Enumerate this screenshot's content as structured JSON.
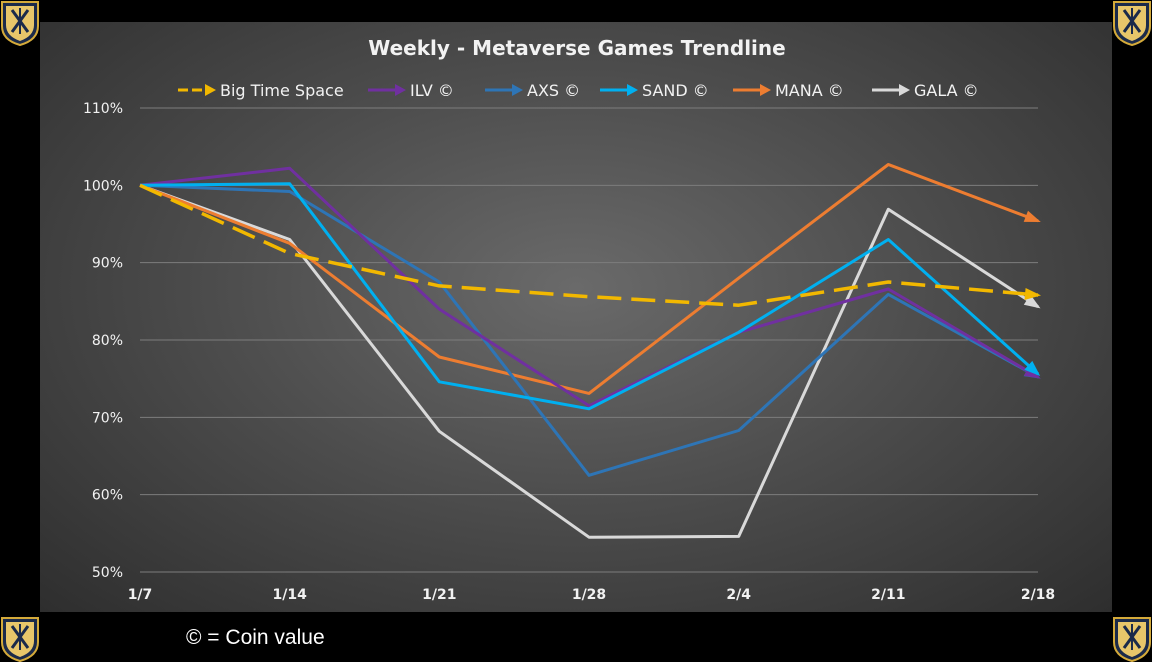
{
  "footnote": "© = Coin value",
  "chart_data": {
    "type": "line",
    "title": "Weekly - Metaverse Games Trendline",
    "xlabel": "",
    "ylabel": "",
    "categories": [
      "1/7",
      "1/14",
      "1/21",
      "1/28",
      "2/4",
      "2/11",
      "2/18"
    ],
    "ylim": [
      50,
      110
    ],
    "yticks": [
      50,
      60,
      70,
      80,
      90,
      100,
      110
    ],
    "ytick_suffix": "%",
    "grid": true,
    "legend_position": "top",
    "series": [
      {
        "name": "Big Time Space",
        "color": "#f2b800",
        "dashed": true,
        "values": [
          100,
          91.2,
          87,
          85.6,
          84.5,
          87.5,
          85.8
        ]
      },
      {
        "name": "ILV ©",
        "color": "#7030a0",
        "dashed": false,
        "values": [
          100,
          102.2,
          84,
          71.5,
          81,
          86.6,
          75.2
        ]
      },
      {
        "name": "AXS ©",
        "color": "#2e75b6",
        "dashed": false,
        "values": [
          100,
          99.2,
          87.5,
          62.5,
          68.3,
          85.9,
          75.2
        ]
      },
      {
        "name": "SAND ©",
        "color": "#00b0f0",
        "dashed": false,
        "values": [
          100,
          100.2,
          74.6,
          71.1,
          81,
          93,
          75.6
        ]
      },
      {
        "name": "MANA ©",
        "color": "#ed7d31",
        "dashed": false,
        "values": [
          100,
          92.5,
          77.8,
          73.1,
          88,
          102.7,
          95.4
        ]
      },
      {
        "name": "GALA ©",
        "color": "#d9d9d9",
        "dashed": false,
        "values": [
          100,
          93,
          68.2,
          54.5,
          54.6,
          96.9,
          84.3
        ]
      }
    ]
  }
}
